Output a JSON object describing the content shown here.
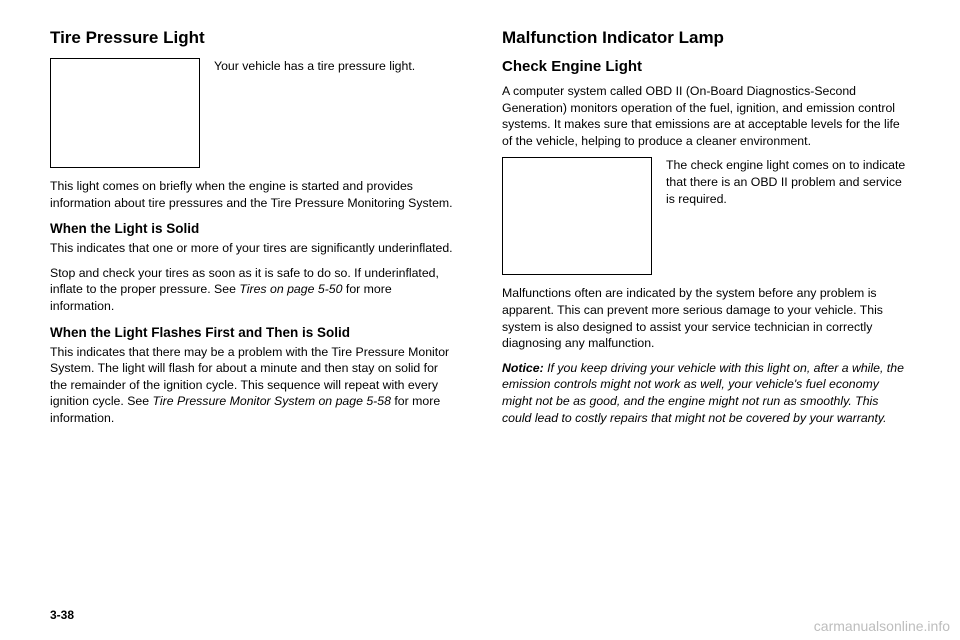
{
  "left": {
    "title": "Tire Pressure Light",
    "iconCaption": "Your vehicle has a tire pressure light.",
    "intro": "This light comes on briefly when the engine is started and provides information about tire pressures and the Tire Pressure Monitoring System.",
    "when1_title": "When the Light is Solid",
    "when1_p1": "This indicates that one or more of your tires are significantly underinflated.",
    "when1_p2a": "Stop and check your tires as soon as it is safe to do so. If underinflated, inflate to the proper pressure. See ",
    "when1_p2_ref": "Tires on page 5-50",
    "when1_p2b": " for more information.",
    "when2_title": "When the Light Flashes First and Then is Solid",
    "when2_p1a": "This indicates that there may be a problem with the Tire Pressure Monitor System. The light will flash for about a minute and then stay on solid for the remainder of the ignition cycle. This sequence will repeat with every ignition cycle. See ",
    "when2_p1_ref": "Tire Pressure Monitor System on page 5-58",
    "when2_p1b": " for more information."
  },
  "right": {
    "title": "Malfunction Indicator Lamp",
    "subtitle": "Check Engine Light",
    "intro": "A computer system called OBD II (On-Board Diagnostics-Second Generation) monitors operation of the fuel, ignition, and emission control systems. It makes sure that emissions are at acceptable levels for the life of the vehicle, helping to produce a cleaner environment.",
    "iconCaption": "The check engine light comes on to indicate that there is an OBD II problem and service is required.",
    "p2": "Malfunctions often are indicated by the system before any problem is apparent. This can prevent more serious damage to your vehicle. This system is also designed to assist your service technician in correctly diagnosing any malfunction.",
    "notice_label": "Notice:",
    "notice_body": "If you keep driving your vehicle with this light on, after a while, the emission controls might not work as well, your vehicle's fuel economy might not be as good, and the engine might not run as smoothly. This could lead to costly repairs that might not be covered by your warranty."
  },
  "pageNum": "3-38",
  "watermark": "carmanualsonline.info"
}
